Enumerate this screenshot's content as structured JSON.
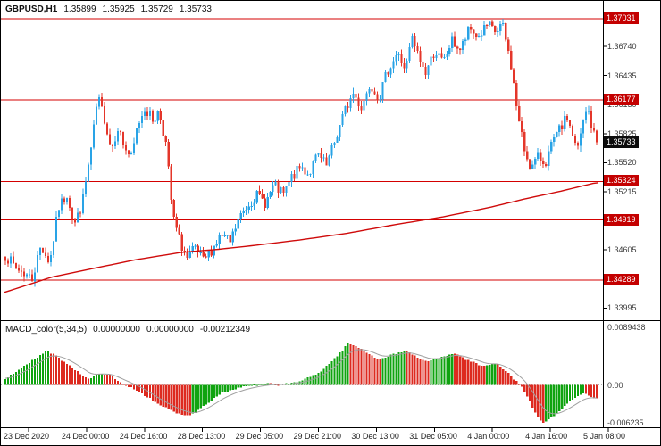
{
  "header": {
    "symbol": "GBPUSD,H1",
    "open": "1.35899",
    "high": "1.35925",
    "low": "1.35729",
    "close": "1.35733"
  },
  "colors": {
    "background": "#ffffff",
    "panel_border": "#000000",
    "bull_candle": "#29a3e6",
    "bear_candle": "#e4362a",
    "level_line": "#d40000",
    "ma_line": "#cf0a0a",
    "badge_bg": "#c40000",
    "badge_current_bg": "#0c0c0c",
    "badge_text": "#ffffff",
    "macd_up": "#0fa30f",
    "macd_down": "#dd2a1f",
    "macd_signal": "#a0a0a0",
    "zero_line": "#b0b0b0",
    "axis_text": "#3c3c3c"
  },
  "chart_data": [
    {
      "type": "candlestick",
      "symbol": "GBPUSD",
      "timeframe": "H1",
      "current_bar_ohlc": {
        "open": 1.35899,
        "high": 1.35925,
        "low": 1.35729,
        "close": 1.35733
      },
      "bars": 222,
      "y_axis": {
        "min": 1.33886,
        "max": 1.37143,
        "ticks": [
          {
            "price": 1.3674,
            "label": "1.36740"
          },
          {
            "price": 1.36435,
            "label": "1.36435"
          },
          {
            "price": 1.3613,
            "label": "1.36130"
          },
          {
            "price": 1.35825,
            "label": "1.35825"
          },
          {
            "price": 1.3552,
            "label": "1.35520"
          },
          {
            "price": 1.35215,
            "label": "1.35215"
          },
          {
            "price": 1.3491,
            "label": "1.34910"
          },
          {
            "price": 1.34605,
            "label": "1.34605"
          },
          {
            "price": 1.343,
            "label": "1.34300"
          },
          {
            "price": 1.33995,
            "label": "1.33995"
          }
        ]
      },
      "levels": [
        {
          "price": 1.37031,
          "label": "1.37031"
        },
        {
          "price": 1.36177,
          "label": "1.36177"
        },
        {
          "price": 1.35324,
          "label": "1.35324"
        },
        {
          "price": 1.34919,
          "label": "1.34919"
        },
        {
          "price": 1.34289,
          "label": "1.34289"
        }
      ],
      "current_price": {
        "price": 1.35733,
        "label": "1.35733"
      },
      "x_axis": {
        "labels": [
          "23 Dec 2020",
          "24 Dec 00:00",
          "24 Dec 16:00",
          "28 Dec 13:00",
          "29 Dec 05:00",
          "29 Dec 21:00",
          "30 Dec 13:00",
          "31 Dec 05:00",
          "4 Jan 00:00",
          "4 Jan 16:00",
          "5 Jan 08:00"
        ]
      },
      "price_keyframes": [
        [
          0.0,
          1.3455
        ],
        [
          0.015,
          1.3443
        ],
        [
          0.03,
          1.3437
        ],
        [
          0.045,
          1.343
        ],
        [
          0.06,
          1.3465
        ],
        [
          0.075,
          1.3447
        ],
        [
          0.09,
          1.3505
        ],
        [
          0.105,
          1.352
        ],
        [
          0.116,
          1.3486
        ],
        [
          0.13,
          1.351
        ],
        [
          0.146,
          1.357
        ],
        [
          0.156,
          1.362
        ],
        [
          0.167,
          1.36
        ],
        [
          0.179,
          1.3566
        ],
        [
          0.19,
          1.359
        ],
        [
          0.2,
          1.357
        ],
        [
          0.213,
          1.3556
        ],
        [
          0.223,
          1.359
        ],
        [
          0.235,
          1.361
        ],
        [
          0.25,
          1.3596
        ],
        [
          0.26,
          1.3606
        ],
        [
          0.272,
          1.357
        ],
        [
          0.283,
          1.3496
        ],
        [
          0.295,
          1.347
        ],
        [
          0.308,
          1.345
        ],
        [
          0.32,
          1.3462
        ],
        [
          0.335,
          1.3448
        ],
        [
          0.35,
          1.3462
        ],
        [
          0.365,
          1.3476
        ],
        [
          0.38,
          1.3468
        ],
        [
          0.394,
          1.3492
        ],
        [
          0.41,
          1.3508
        ],
        [
          0.424,
          1.3518
        ],
        [
          0.44,
          1.351
        ],
        [
          0.454,
          1.3528
        ],
        [
          0.47,
          1.3518
        ],
        [
          0.484,
          1.3536
        ],
        [
          0.5,
          1.3548
        ],
        [
          0.513,
          1.354
        ],
        [
          0.528,
          1.356
        ],
        [
          0.543,
          1.3548
        ],
        [
          0.558,
          1.3576
        ],
        [
          0.573,
          1.3605
        ],
        [
          0.588,
          1.3625
        ],
        [
          0.602,
          1.361
        ],
        [
          0.617,
          1.3636
        ],
        [
          0.632,
          1.362
        ],
        [
          0.647,
          1.365
        ],
        [
          0.662,
          1.3666
        ],
        [
          0.677,
          1.365
        ],
        [
          0.687,
          1.3683
        ],
        [
          0.7,
          1.366
        ],
        [
          0.71,
          1.3646
        ],
        [
          0.726,
          1.367
        ],
        [
          0.74,
          1.3656
        ],
        [
          0.755,
          1.368
        ],
        [
          0.77,
          1.367
        ],
        [
          0.785,
          1.3692
        ],
        [
          0.8,
          1.3684
        ],
        [
          0.815,
          1.3696
        ],
        [
          0.83,
          1.3688
        ],
        [
          0.84,
          1.3698
        ],
        [
          0.855,
          1.3655
        ],
        [
          0.867,
          1.36
        ],
        [
          0.878,
          1.3565
        ],
        [
          0.89,
          1.3546
        ],
        [
          0.9,
          1.3558
        ],
        [
          0.913,
          1.3552
        ],
        [
          0.925,
          1.3572
        ],
        [
          0.937,
          1.3586
        ],
        [
          0.95,
          1.36
        ],
        [
          0.96,
          1.358
        ],
        [
          0.967,
          1.3562
        ],
        [
          0.976,
          1.3592
        ],
        [
          0.985,
          1.361
        ],
        [
          0.992,
          1.3588
        ],
        [
          1.0,
          1.35733
        ]
      ],
      "extremes": {
        "high_touch": {
          "t": 0.84,
          "price": 1.37031
        },
        "low_touch": {
          "t": 0.045,
          "price": 1.34289
        }
      },
      "ma_line": {
        "name": "moving-average",
        "points": [
          [
            0.0,
            1.3416
          ],
          [
            0.08,
            1.3432
          ],
          [
            0.15,
            1.3441
          ],
          [
            0.22,
            1.345
          ],
          [
            0.3,
            1.3458
          ],
          [
            0.36,
            1.3461
          ],
          [
            0.42,
            1.3465
          ],
          [
            0.5,
            1.3471
          ],
          [
            0.58,
            1.3478
          ],
          [
            0.66,
            1.3487
          ],
          [
            0.74,
            1.3495
          ],
          [
            0.82,
            1.3505
          ],
          [
            0.88,
            1.3514
          ],
          [
            0.94,
            1.3522
          ],
          [
            1.0,
            1.3531
          ]
        ]
      }
    },
    {
      "type": "bar",
      "name": "MACD_color(5,34,5)",
      "values_display": [
        "0.00000000",
        "0.00000000",
        "-0.00212349"
      ],
      "y_axis": {
        "min": -0.006235,
        "max": 0.0089438,
        "label_max": "0.0089438",
        "label_zero": "0.00",
        "label_min": "-0.006235"
      },
      "last_value": -0.00212349,
      "keyframes": [
        [
          0.0,
          0.001
        ],
        [
          0.035,
          0.003
        ],
        [
          0.071,
          0.0052
        ],
        [
          0.1,
          0.0035
        ],
        [
          0.141,
          0.0008
        ],
        [
          0.16,
          0.0018
        ],
        [
          0.176,
          0.0015
        ],
        [
          0.193,
          0.0004
        ],
        [
          0.223,
          -0.0008
        ],
        [
          0.26,
          -0.003
        ],
        [
          0.295,
          -0.0044
        ],
        [
          0.315,
          -0.0045
        ],
        [
          0.34,
          -0.0028
        ],
        [
          0.365,
          -0.0012
        ],
        [
          0.4,
          -0.0003
        ],
        [
          0.44,
          0.0002
        ],
        [
          0.47,
          0.0001
        ],
        [
          0.5,
          0.0006
        ],
        [
          0.53,
          0.0018
        ],
        [
          0.555,
          0.0038
        ],
        [
          0.58,
          0.0063
        ],
        [
          0.6,
          0.0055
        ],
        [
          0.632,
          0.0038
        ],
        [
          0.655,
          0.0046
        ],
        [
          0.677,
          0.0052
        ],
        [
          0.695,
          0.0042
        ],
        [
          0.714,
          0.0035
        ],
        [
          0.735,
          0.0042
        ],
        [
          0.758,
          0.0048
        ],
        [
          0.78,
          0.0038
        ],
        [
          0.81,
          0.0028
        ],
        [
          0.83,
          0.0032
        ],
        [
          0.85,
          0.0018
        ],
        [
          0.875,
          -0.0005
        ],
        [
          0.895,
          -0.004
        ],
        [
          0.908,
          -0.0058
        ],
        [
          0.925,
          -0.0048
        ],
        [
          0.945,
          -0.0032
        ],
        [
          0.96,
          -0.0022
        ],
        [
          0.975,
          -0.0013
        ],
        [
          0.988,
          -0.0016
        ],
        [
          1.0,
          -0.00212349
        ]
      ]
    }
  ]
}
